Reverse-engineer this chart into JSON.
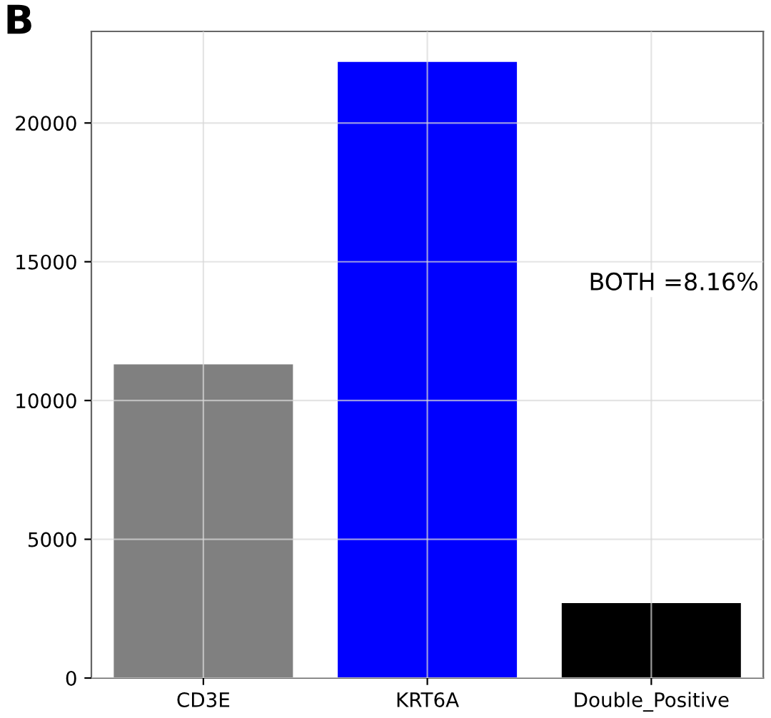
{
  "chart_data": {
    "type": "bar",
    "title": "B",
    "categories": [
      "CD3E",
      "KRT6A",
      "Double_Positive"
    ],
    "values": [
      11300,
      22200,
      2700
    ],
    "colors": [
      "#808080",
      "#0000ff",
      "#000000"
    ],
    "ylim": [
      0,
      23300
    ],
    "yticks": [
      0,
      5000,
      10000,
      15000,
      20000
    ],
    "grid": true,
    "annotations": [
      "BOTH =8.16%"
    ]
  }
}
